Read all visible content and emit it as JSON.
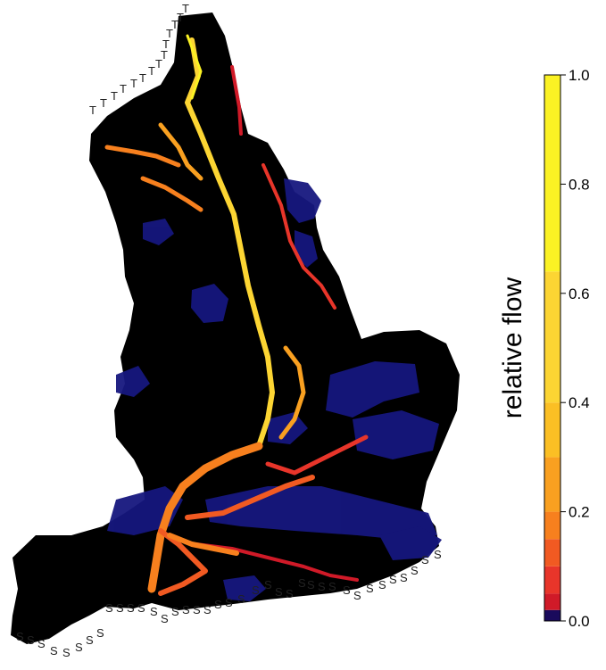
{
  "colorbar": {
    "label": "relative flow",
    "range": [
      0,
      1
    ],
    "ticks": [
      {
        "value": 1.0,
        "label": "1.0"
      },
      {
        "value": 0.8,
        "label": "0.8"
      },
      {
        "value": 0.6,
        "label": "0.6"
      },
      {
        "value": 0.4,
        "label": "0.4"
      },
      {
        "value": 0.2,
        "label": "0.2"
      },
      {
        "value": 0.0,
        "label": "0.0"
      }
    ],
    "bands": [
      {
        "from": 0.0,
        "to": 0.02,
        "color": "#1a0a5c"
      },
      {
        "from": 0.02,
        "to": 0.05,
        "color": "#d01a28"
      },
      {
        "from": 0.05,
        "to": 0.1,
        "color": "#e8352a"
      },
      {
        "from": 0.1,
        "to": 0.15,
        "color": "#f15a22"
      },
      {
        "from": 0.15,
        "to": 0.2,
        "color": "#f7801e"
      },
      {
        "from": 0.2,
        "to": 0.3,
        "color": "#f9a020"
      },
      {
        "from": 0.3,
        "to": 0.4,
        "color": "#fbbf24"
      },
      {
        "from": 0.4,
        "to": 0.64,
        "color": "#fcd533"
      },
      {
        "from": 0.64,
        "to": 1.0,
        "color": "#fbf224"
      }
    ]
  },
  "coast_markers": {
    "north": "T",
    "south": "S"
  },
  "colors": {
    "land": "#000000",
    "low_flow": "#1b1c8a"
  }
}
